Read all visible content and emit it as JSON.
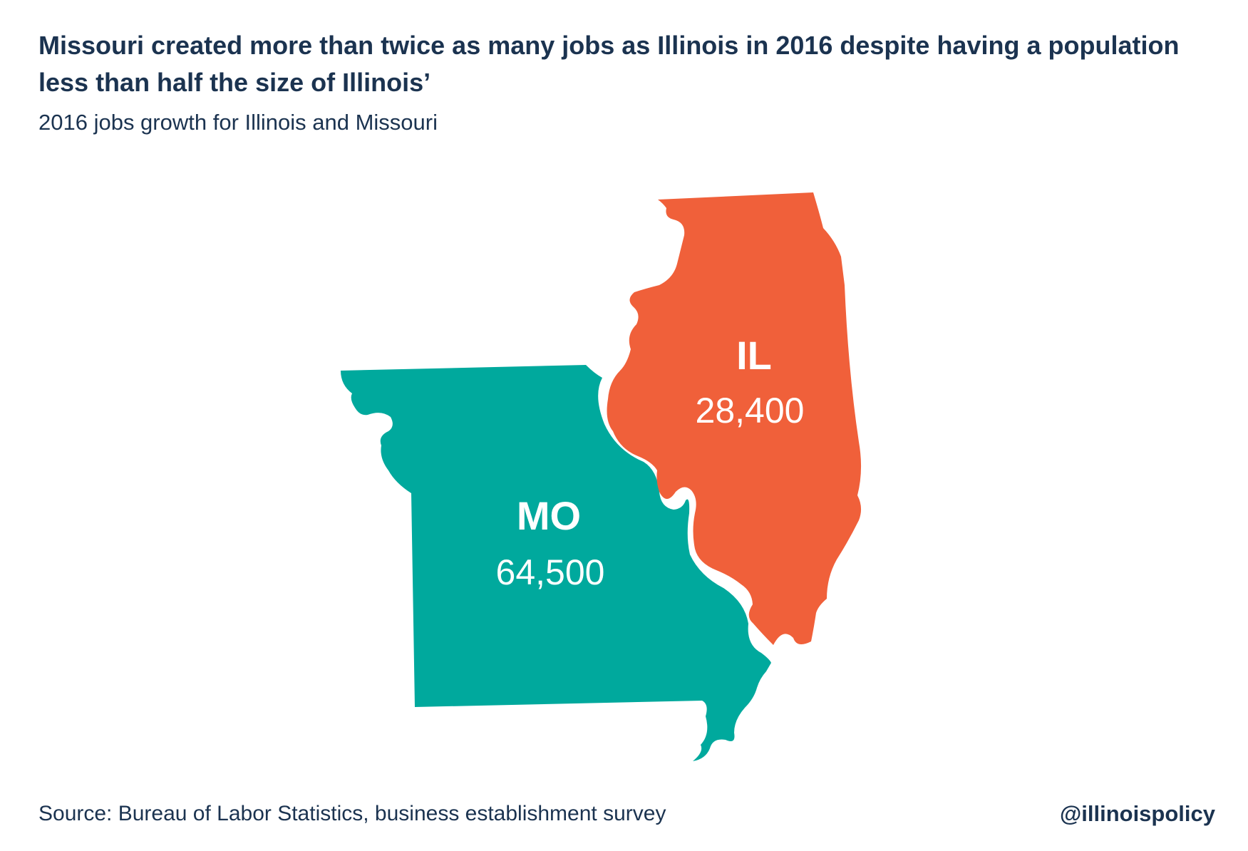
{
  "title": "Missouri created more than twice as many jobs as Illinois in 2016 despite having a population less than half the size of Illinois’",
  "subtitle": "2016 jobs growth for Illinois and Missouri",
  "source": "Source: Bureau of Labor Statistics, business establishment survey",
  "handle": "@illinoispolicy",
  "colors": {
    "text": "#1b3350",
    "illinois": "#f0603a",
    "missouri": "#00a99d",
    "label": "#ffffff"
  },
  "states": {
    "illinois": {
      "code": "IL",
      "value": "28,400"
    },
    "missouri": {
      "code": "MO",
      "value": "64,500"
    }
  }
}
